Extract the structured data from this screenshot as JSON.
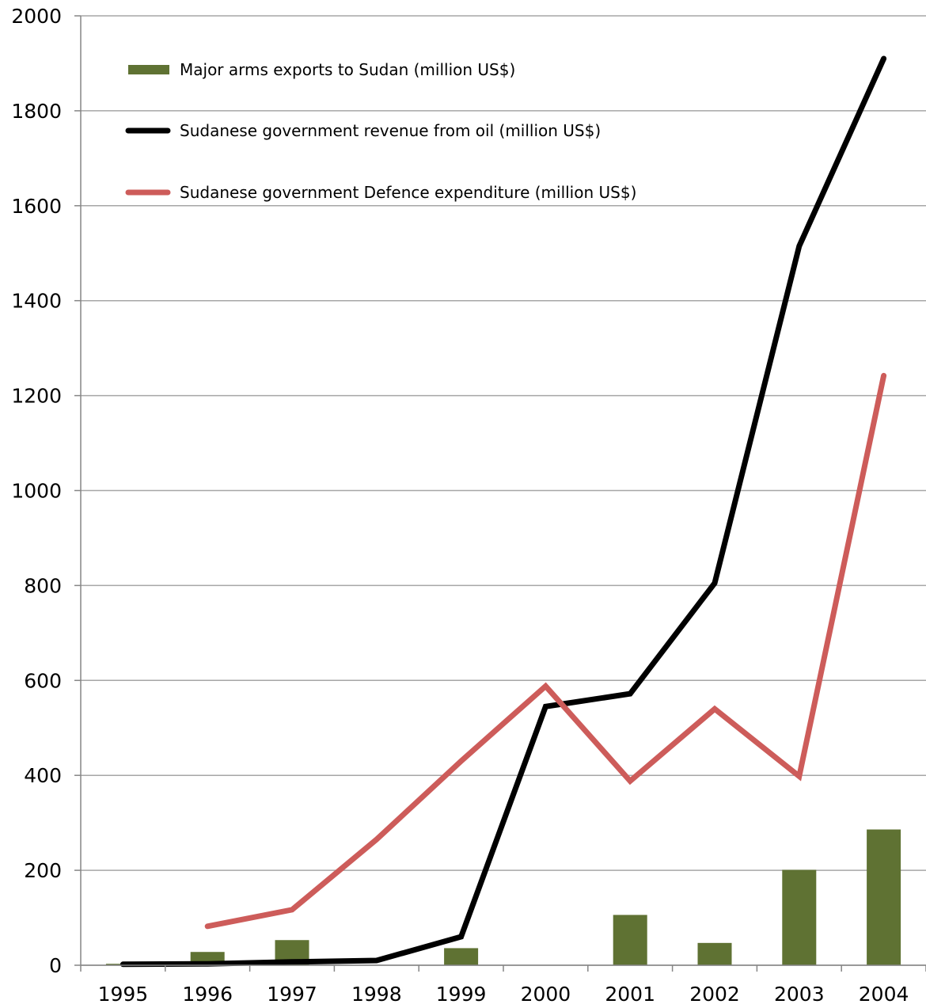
{
  "chart_data": {
    "type": "bar",
    "categories": [
      "1995",
      "1996",
      "1997",
      "1998",
      "1999",
      "2000",
      "2001",
      "2002",
      "2003",
      "2004"
    ],
    "ylim": [
      0,
      2000
    ],
    "yticks": [
      "0",
      "200",
      "400",
      "600",
      "800",
      "1000",
      "1200",
      "1400",
      "1600",
      "1800",
      "2000"
    ],
    "grid": "horizontal",
    "legend_position": "top-left",
    "series": [
      {
        "name": "Major arms exports to Sudan (million US$)",
        "kind": "bar",
        "color": "#5f7233",
        "values": [
          3,
          28,
          53,
          0,
          36,
          0,
          106,
          47,
          201,
          286
        ]
      },
      {
        "name": "Sudanese government revenue from oil (million US$)",
        "kind": "line",
        "color": "#000000",
        "values": [
          2,
          3,
          7,
          10,
          60,
          545,
          572,
          805,
          1515,
          1910
        ]
      },
      {
        "name": "Sudanese government Defence expenditure (million US$)",
        "kind": "line",
        "color": "#cd5c5a",
        "values": [
          null,
          82,
          117,
          265,
          430,
          588,
          388,
          540,
          398,
          1242
        ]
      }
    ]
  }
}
